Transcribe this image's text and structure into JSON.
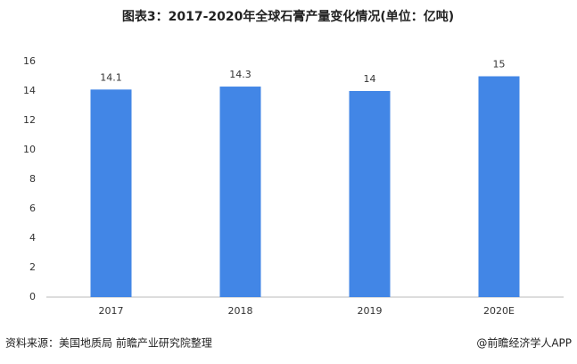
{
  "chart_data": {
    "type": "bar",
    "title": "图表3：2017-2020年全球石膏产量变化情况(单位：亿吨)",
    "categories": [
      "2017",
      "2018",
      "2019",
      "2020E"
    ],
    "values": [
      14.1,
      14.3,
      14,
      15
    ],
    "color": "#4286e6",
    "ylim": [
      0,
      16
    ],
    "yticks": [
      0,
      2,
      4,
      6,
      8,
      10,
      12,
      14,
      16
    ]
  },
  "footer": {
    "source": "资料来源：美国地质局 前瞻产业研究院整理",
    "brand": "@前瞻经济学人APP"
  }
}
